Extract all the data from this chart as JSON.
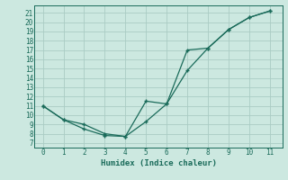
{
  "xlabel": "Humidex (Indice chaleur)",
  "ylabel": "",
  "bg_color": "#cce8e0",
  "grid_color": "#aaccc4",
  "line_color": "#1a6b5a",
  "line1_x": [
    0,
    1,
    2,
    3,
    4,
    5,
    6,
    7,
    8,
    9,
    10,
    11
  ],
  "line1_y": [
    11,
    9.5,
    8.5,
    7.8,
    7.7,
    9.3,
    11.2,
    17.0,
    17.2,
    19.2,
    20.5,
    21.2
  ],
  "line2_x": [
    0,
    1,
    2,
    3,
    4,
    5,
    6,
    7,
    8,
    9,
    10,
    11
  ],
  "line2_y": [
    11,
    9.5,
    9.0,
    8.0,
    7.7,
    11.5,
    11.2,
    14.8,
    17.2,
    19.2,
    20.5,
    21.2
  ],
  "xlim": [
    -0.4,
    11.6
  ],
  "ylim": [
    6.5,
    21.8
  ],
  "xticks": [
    0,
    1,
    2,
    3,
    4,
    5,
    6,
    7,
    8,
    9,
    10,
    11
  ],
  "yticks": [
    7,
    8,
    9,
    10,
    11,
    12,
    13,
    14,
    15,
    16,
    17,
    18,
    19,
    20,
    21
  ]
}
